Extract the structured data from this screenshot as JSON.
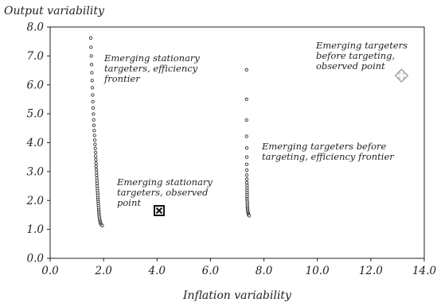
{
  "chart_data": {
    "type": "scatter",
    "ylabel": "Output variability",
    "xlabel": "Inflation variability",
    "xlim": [
      0,
      14
    ],
    "ylim": [
      0,
      8
    ],
    "xticks": [
      "0.0",
      "2.0",
      "4.0",
      "6.0",
      "8.0",
      "10.0",
      "12.0",
      "14.0"
    ],
    "yticks": [
      "0.0",
      "1.0",
      "2.0",
      "3.0",
      "4.0",
      "5.0",
      "6.0",
      "7.0",
      "8.0"
    ],
    "grid": false,
    "legend": "none",
    "series": [
      {
        "annotation": [
          "Emerging stationary",
          "targeters, efficiency",
          "frontier"
        ],
        "marker": "small-circle",
        "color": "#333333",
        "points": [
          [
            1.52,
            7.62
          ],
          [
            1.53,
            7.3
          ],
          [
            1.54,
            7.0
          ],
          [
            1.55,
            6.7
          ],
          [
            1.56,
            6.42
          ],
          [
            1.57,
            6.15
          ],
          [
            1.58,
            5.9
          ],
          [
            1.59,
            5.65
          ],
          [
            1.6,
            5.42
          ],
          [
            1.61,
            5.2
          ],
          [
            1.62,
            4.99
          ],
          [
            1.63,
            4.79
          ],
          [
            1.64,
            4.6
          ],
          [
            1.65,
            4.42
          ],
          [
            1.66,
            4.25
          ],
          [
            1.67,
            4.09
          ],
          [
            1.68,
            3.94
          ],
          [
            1.69,
            3.8
          ],
          [
            1.7,
            3.66
          ],
          [
            1.7,
            3.53
          ],
          [
            1.71,
            3.41
          ],
          [
            1.72,
            3.29
          ],
          [
            1.72,
            3.18
          ],
          [
            1.73,
            3.07
          ],
          [
            1.74,
            2.97
          ],
          [
            1.74,
            2.87
          ],
          [
            1.75,
            2.77
          ],
          [
            1.75,
            2.68
          ],
          [
            1.76,
            2.59
          ],
          [
            1.76,
            2.5
          ],
          [
            1.77,
            2.42
          ],
          [
            1.77,
            2.34
          ],
          [
            1.78,
            2.26
          ],
          [
            1.78,
            2.18
          ],
          [
            1.79,
            2.1
          ],
          [
            1.79,
            2.03
          ],
          [
            1.8,
            1.96
          ],
          [
            1.8,
            1.89
          ],
          [
            1.81,
            1.82
          ],
          [
            1.81,
            1.75
          ],
          [
            1.82,
            1.68
          ],
          [
            1.82,
            1.62
          ],
          [
            1.83,
            1.56
          ],
          [
            1.83,
            1.5
          ],
          [
            1.84,
            1.44
          ],
          [
            1.85,
            1.38
          ],
          [
            1.86,
            1.32
          ],
          [
            1.87,
            1.27
          ],
          [
            1.88,
            1.23
          ],
          [
            1.9,
            1.19
          ],
          [
            1.92,
            1.16
          ],
          [
            1.95,
            1.13
          ]
        ]
      },
      {
        "annotation": [
          "Emerging targeters before",
          "targeting, efficiency frontier"
        ],
        "marker": "small-circle",
        "color": "#333333",
        "points": [
          [
            7.35,
            6.52
          ],
          [
            7.35,
            5.5
          ],
          [
            7.35,
            4.78
          ],
          [
            7.35,
            4.22
          ],
          [
            7.36,
            3.82
          ],
          [
            7.36,
            3.5
          ],
          [
            7.36,
            3.25
          ],
          [
            7.36,
            3.05
          ],
          [
            7.36,
            2.88
          ],
          [
            7.36,
            2.74
          ],
          [
            7.36,
            2.62
          ],
          [
            7.37,
            2.52
          ],
          [
            7.37,
            2.43
          ],
          [
            7.37,
            2.35
          ],
          [
            7.37,
            2.27
          ],
          [
            7.37,
            2.2
          ],
          [
            7.37,
            2.13
          ],
          [
            7.37,
            2.06
          ],
          [
            7.37,
            2.0
          ],
          [
            7.38,
            1.94
          ],
          [
            7.38,
            1.88
          ],
          [
            7.38,
            1.82
          ],
          [
            7.38,
            1.76
          ],
          [
            7.39,
            1.71
          ],
          [
            7.39,
            1.66
          ],
          [
            7.4,
            1.61
          ],
          [
            7.41,
            1.57
          ],
          [
            7.42,
            1.53
          ],
          [
            7.43,
            1.5
          ],
          [
            7.45,
            1.47
          ]
        ]
      }
    ],
    "observed_points": [
      {
        "annotation": [
          "Emerging stationary",
          "targeters, observed",
          "point"
        ],
        "x": 4.08,
        "y": 1.65,
        "marker": "boxed-x"
      },
      {
        "annotation": [
          "Emerging targeters",
          "before targeting,",
          "observed point"
        ],
        "x": 13.15,
        "y": 6.32,
        "marker": "cross-diamond"
      }
    ]
  }
}
